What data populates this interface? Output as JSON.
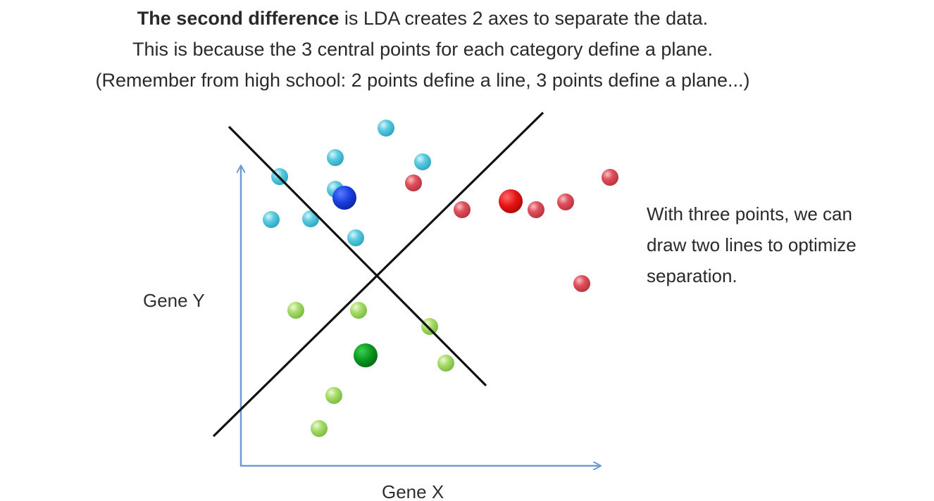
{
  "header": {
    "line1_bold": "The second difference",
    "line1_rest": " is LDA creates 2 axes to separate the data.",
    "line2": "This is because the 3 central points for each category define a plane.",
    "line3": "(Remember from high school: 2 points define a line, 3 points define a plane...)"
  },
  "side_note": {
    "line1": "With three points, we can",
    "line2": "draw two lines to optimize",
    "line3": "separation."
  },
  "axes": {
    "x_label": "Gene X",
    "y_label": "Gene Y",
    "axis_color": "#6f9bd1"
  },
  "colors": {
    "cyan_points": "#5ccbe0",
    "red_points": "#e0505c",
    "green_points": "#a8dd6a",
    "cyan_center": "#1a3fe0",
    "red_center": "#e81414",
    "green_center": "#0a9a1f",
    "separating_lines": "#111111"
  }
}
